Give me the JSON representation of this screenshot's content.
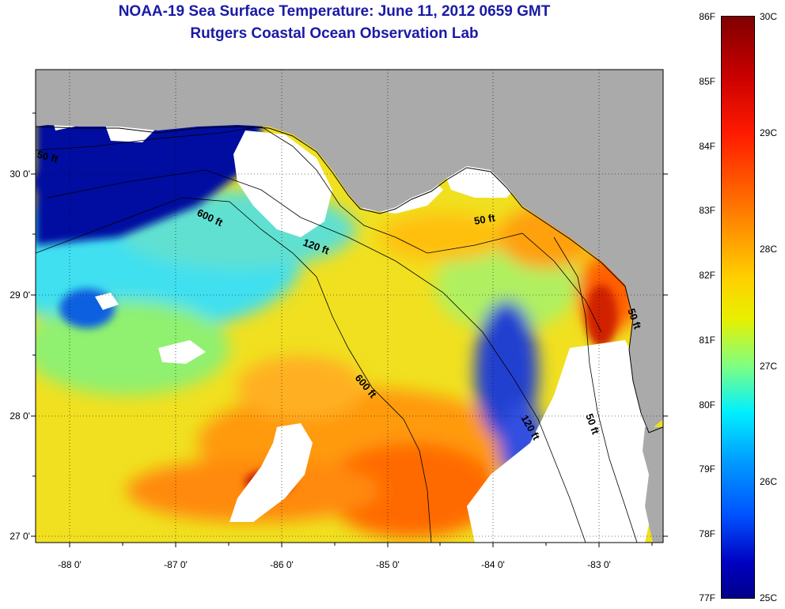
{
  "header": {
    "title": "NOAA-19 Sea Surface Temperature:  June 11, 2012 0659 GMT",
    "subtitle": "Rutgers Coastal Ocean Observation Lab"
  },
  "axes": {
    "lat_labels": [
      "30 0'",
      "29 0'",
      "28 0'",
      "27 0'"
    ],
    "lon_labels": [
      "-88 0'",
      "-87 0'",
      "-86 0'",
      "-85 0'",
      "-84 0'",
      "-83 0'"
    ]
  },
  "isobaths": {
    "labels": [
      "50 ft",
      "600 ft",
      "120 ft",
      "50 ft",
      "600 ft",
      "120 ft",
      "50 ft",
      "50 ft"
    ]
  },
  "colorbar": {
    "fahrenheit_labels": [
      "86F",
      "85F",
      "84F",
      "83F",
      "82F",
      "81F",
      "80F",
      "79F",
      "78F",
      "77F"
    ],
    "celsius_labels": [
      "30C",
      "29C",
      "28C",
      "27C",
      "26C",
      "25C"
    ]
  },
  "colors": {
    "land": "#aaaaaa",
    "no_data": "#ffffff",
    "title": "#1a1aa6",
    "warm": "#ff7000",
    "cool": "#0000c0"
  }
}
